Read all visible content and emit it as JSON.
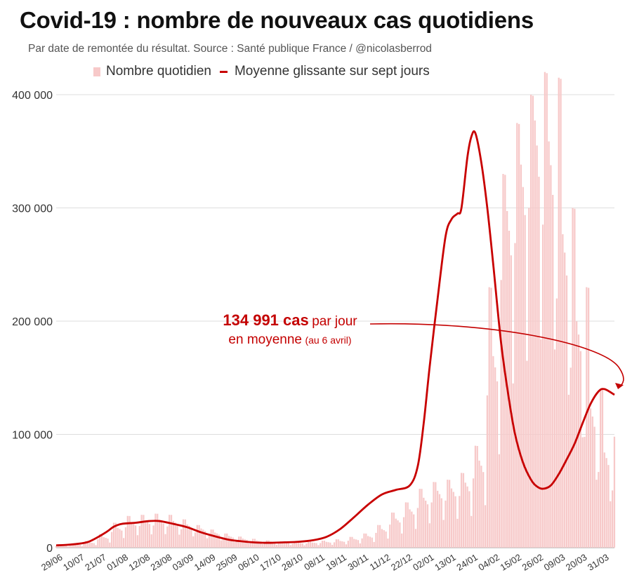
{
  "title": "Covid-19 : nombre de nouveaux cas quotidiens",
  "subtitle": "Par date de remontée du résultat. Source : Santé publique France / @nicolasberrod",
  "legend": {
    "bars_label": "Nombre quotidien",
    "line_label": "Moyenne glissante sur sept jours"
  },
  "colors": {
    "bars": "#f7c9c9",
    "line": "#c80000",
    "annotation": "#c40000",
    "grid": "#dddddd"
  },
  "annotation": {
    "value_text": "134 991 cas",
    "text_after_value": "par jour",
    "line2": "en moyenne",
    "date_note": "(au 6 avril)"
  },
  "chart_data": {
    "type": "bar",
    "start_date": "2021-06-29",
    "end_date": "2022-04-06",
    "ylim": [
      0,
      400000
    ],
    "yticks": [
      0,
      100000,
      200000,
      300000,
      400000
    ],
    "ytick_labels": [
      "0",
      "100 000",
      "200 000",
      "300 000",
      "400 000"
    ],
    "xtick_labels": [
      "29/06",
      "10/07",
      "21/07",
      "01/08",
      "12/08",
      "23/08",
      "03/09",
      "14/09",
      "25/09",
      "06/10",
      "17/10",
      "28/10",
      "08/11",
      "19/11",
      "30/11",
      "11/12",
      "22/12",
      "02/01",
      "13/01",
      "24/01",
      "04/02",
      "15/02",
      "26/02",
      "09/03",
      "20/03",
      "31/03"
    ],
    "grid": true,
    "legend_position": "top",
    "series": [
      {
        "name": "Nombre quotidien",
        "kind": "bar",
        "weekly_values": [
          2000,
          2800,
          4500,
          9000,
          17000,
          22000,
          23500,
          24000,
          23000,
          20000,
          16500,
          13000,
          10000,
          7800,
          6200,
          5200,
          4500,
          4200,
          4500,
          5000,
          5800,
          7500,
          10000,
          16000,
          25000,
          33000,
          43000,
          49000,
          51000,
          56000,
          75000,
          165000,
          290000,
          330000,
          368000,
          350000,
          270000,
          195000,
          120000,
          82000,
          62000,
          53000,
          55000,
          68000,
          100000,
          135000,
          140000,
          135000
        ],
        "weekly_peaks": [
          2600,
          3800,
          6000,
          12000,
          22000,
          28000,
          29000,
          30000,
          29000,
          25000,
          20000,
          16000,
          12500,
          9800,
          7800,
          6400,
          5600,
          5400,
          5600,
          6200,
          7400,
          9500,
          12500,
          20000,
          31000,
          40000,
          52000,
          58000,
          60000,
          66000,
          90000,
          230000,
          330000,
          375000,
          400000,
          420000,
          415000,
          300000,
          230000,
          140000,
          98000,
          75000,
          66000,
          78000,
          90000,
          180000,
          215000,
          205000
        ]
      },
      {
        "name": "Moyenne glissante sur sept jours",
        "kind": "line",
        "points": [
          [
            "2021-06-29",
            2000
          ],
          [
            "2021-07-06",
            2700
          ],
          [
            "2021-07-13",
            4200
          ],
          [
            "2021-07-17",
            6500
          ],
          [
            "2021-07-24",
            13500
          ],
          [
            "2021-07-28",
            18500
          ],
          [
            "2021-08-01",
            21000
          ],
          [
            "2021-08-08",
            22000
          ],
          [
            "2021-08-15",
            23500
          ],
          [
            "2021-08-20",
            23500
          ],
          [
            "2021-08-27",
            21000
          ],
          [
            "2021-09-03",
            18000
          ],
          [
            "2021-09-10",
            13500
          ],
          [
            "2021-09-17",
            10000
          ],
          [
            "2021-09-24",
            7000
          ],
          [
            "2021-10-01",
            5500
          ],
          [
            "2021-10-08",
            4500
          ],
          [
            "2021-10-15",
            4300
          ],
          [
            "2021-10-22",
            4700
          ],
          [
            "2021-10-29",
            5200
          ],
          [
            "2021-11-05",
            6500
          ],
          [
            "2021-11-12",
            9500
          ],
          [
            "2021-11-19",
            16500
          ],
          [
            "2021-11-26",
            27000
          ],
          [
            "2021-12-03",
            38000
          ],
          [
            "2021-12-10",
            47000
          ],
          [
            "2021-12-17",
            51000
          ],
          [
            "2021-12-24",
            55000
          ],
          [
            "2021-12-28",
            72000
          ],
          [
            "2021-12-31",
            110000
          ],
          [
            "2022-01-03",
            160000
          ],
          [
            "2022-01-07",
            220000
          ],
          [
            "2022-01-11",
            275000
          ],
          [
            "2022-01-14",
            290000
          ],
          [
            "2022-01-17",
            295000
          ],
          [
            "2022-01-19",
            300000
          ],
          [
            "2022-01-22",
            345000
          ],
          [
            "2022-01-24",
            363000
          ],
          [
            "2022-01-26",
            366000
          ],
          [
            "2022-01-29",
            340000
          ],
          [
            "2022-02-01",
            300000
          ],
          [
            "2022-02-04",
            250000
          ],
          [
            "2022-02-08",
            180000
          ],
          [
            "2022-02-12",
            130000
          ],
          [
            "2022-02-15",
            100000
          ],
          [
            "2022-02-19",
            75000
          ],
          [
            "2022-02-23",
            60000
          ],
          [
            "2022-02-26",
            54000
          ],
          [
            "2022-03-01",
            52000
          ],
          [
            "2022-03-05",
            55000
          ],
          [
            "2022-03-09",
            65000
          ],
          [
            "2022-03-13",
            78000
          ],
          [
            "2022-03-17",
            92000
          ],
          [
            "2022-03-21",
            110000
          ],
          [
            "2022-03-25",
            127000
          ],
          [
            "2022-03-29",
            138000
          ],
          [
            "2022-04-01",
            140000
          ],
          [
            "2022-04-06",
            134991
          ]
        ]
      }
    ]
  }
}
